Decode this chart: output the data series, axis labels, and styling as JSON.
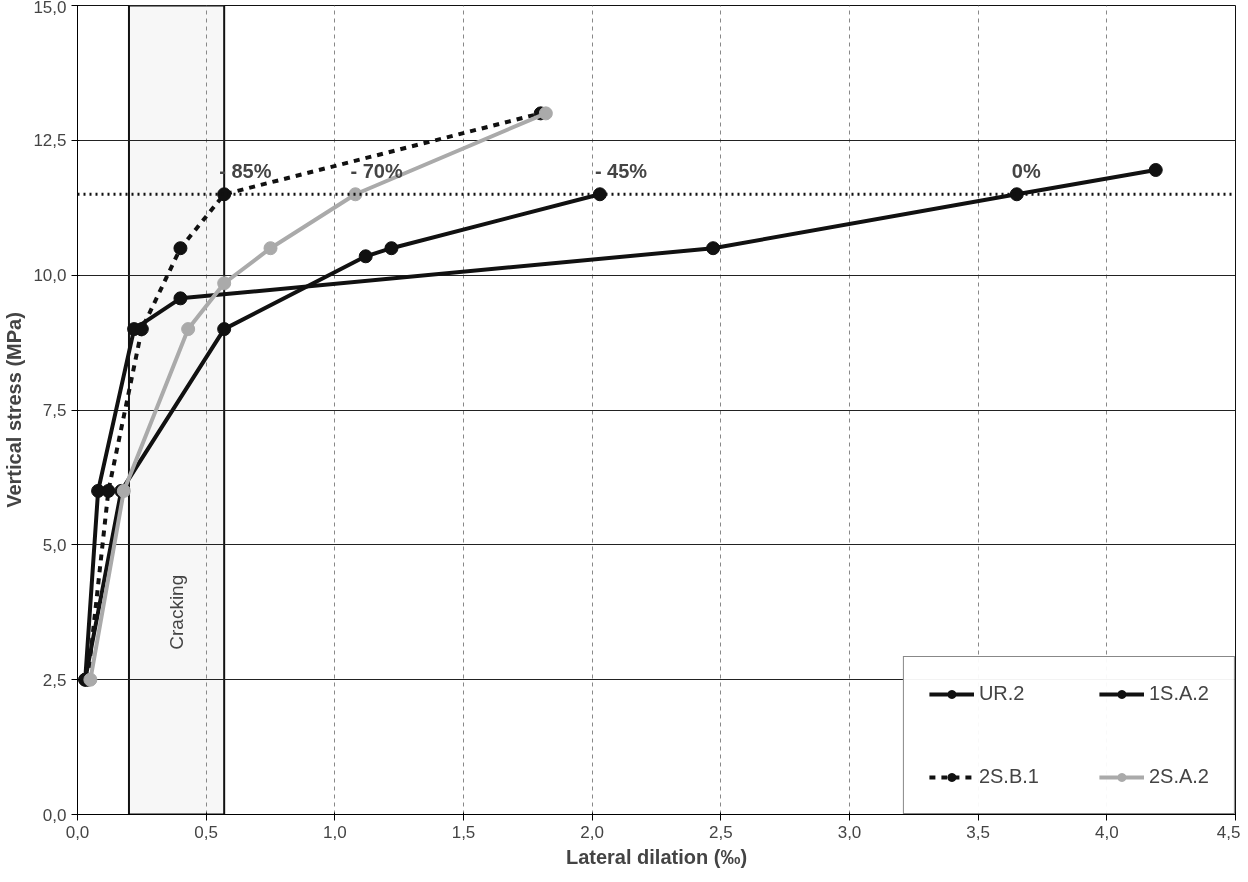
{
  "chart_data": {
    "type": "line",
    "xlabel": "Lateral dilation (‰)",
    "ylabel": "Vertical stress (MPa)",
    "xlim": [
      0,
      4.5
    ],
    "ylim": [
      0,
      15
    ],
    "xticks": [
      {
        "value": 0,
        "label": "0,0"
      },
      {
        "value": 0.5,
        "label": "0,5"
      },
      {
        "value": 1,
        "label": "1,0"
      },
      {
        "value": 1.5,
        "label": "1,5"
      },
      {
        "value": 2,
        "label": "2,0"
      },
      {
        "value": 2.5,
        "label": "2,5"
      },
      {
        "value": 3,
        "label": "3,0"
      },
      {
        "value": 3.5,
        "label": "3,5"
      },
      {
        "value": 4,
        "label": "4,0"
      },
      {
        "value": 4.5,
        "label": "4,5"
      }
    ],
    "yticks": [
      {
        "value": 0,
        "label": "0,0"
      },
      {
        "value": 2.5,
        "label": "2,5"
      },
      {
        "value": 5,
        "label": "5,0"
      },
      {
        "value": 7.5,
        "label": "7,5"
      },
      {
        "value": 10,
        "label": "10,0"
      },
      {
        "value": 12.5,
        "label": "12,5"
      },
      {
        "value": 15,
        "label": "15,0"
      }
    ],
    "grid": true,
    "legend": "bottom right",
    "marker": "circle",
    "series": [
      {
        "name": "UR.2",
        "color": "#111111",
        "line_style": "solid",
        "x": [
          0.03,
          0.08,
          0.22,
          0.4,
          2.47,
          3.65,
          4.19
        ],
        "values": [
          2.5,
          6,
          9,
          9.57,
          10.5,
          11.5,
          11.95
        ]
      },
      {
        "name": "1S.A.2",
        "color": "#111111",
        "line_style": "solid",
        "x": [
          0.03,
          0.17,
          0.57,
          1.12,
          1.22,
          2.03
        ],
        "values": [
          2.5,
          6,
          9,
          10.35,
          10.5,
          11.5
        ]
      },
      {
        "name": "2S.B.1",
        "color": "#111111",
        "line_style": "dashed",
        "x": [
          0.04,
          0.12,
          0.25,
          0.4,
          0.57,
          1.8
        ],
        "values": [
          2.5,
          6,
          9,
          10.5,
          11.5,
          13
        ]
      },
      {
        "name": "2S.A.2",
        "color": "#aaaaaa",
        "line_style": "solid",
        "x": [
          0.05,
          0.18,
          0.43,
          0.57,
          0.75,
          1.08,
          1.82
        ],
        "values": [
          2.5,
          6,
          9,
          9.85,
          10.5,
          11.5,
          13
        ]
      }
    ],
    "ref_lines": [
      {
        "axis": "y",
        "value": 11.5,
        "label": null,
        "line_style": "dotted",
        "color": "#111111"
      }
    ],
    "bands": [
      {
        "axis": "x",
        "from": 0.2,
        "to": 0.57,
        "label": "Cracking",
        "color": "#f2f2f2"
      }
    ],
    "annotations": [
      {
        "text": "- 85%",
        "x": 0.57,
        "y": 11.5
      },
      {
        "text": "- 70%",
        "x": 1.08,
        "y": 11.5
      },
      {
        "text": "- 45%",
        "x": 2.03,
        "y": 11.5
      },
      {
        "text": "0%",
        "x": 3.65,
        "y": 11.5
      }
    ]
  }
}
